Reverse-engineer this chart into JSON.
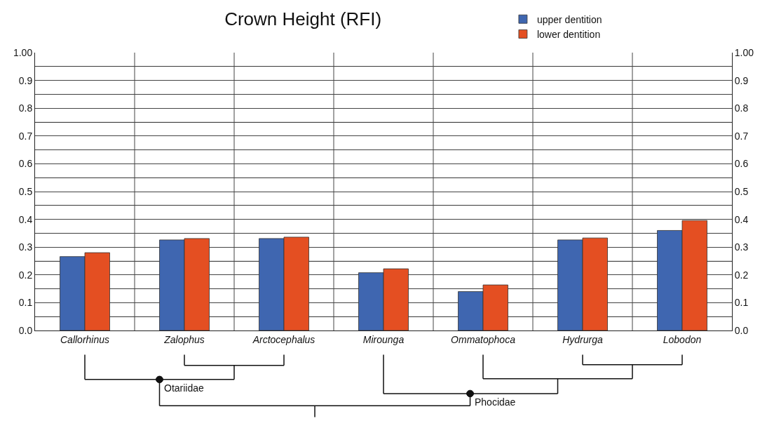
{
  "chart_data": {
    "type": "bar",
    "title": "Crown Height (RFI)",
    "categories": [
      "Callorhinus",
      "Zalophus",
      "Arctocephalus",
      "Mirounga",
      "Ommatophoca",
      "Hydrurga",
      "Lobodon"
    ],
    "series": [
      {
        "name": "upper dentition",
        "color": "#3f66b0",
        "values": [
          0.266,
          0.326,
          0.331,
          0.208,
          0.14,
          0.326,
          0.36
        ]
      },
      {
        "name": "lower dentition",
        "color": "#e44f22",
        "values": [
          0.28,
          0.331,
          0.336,
          0.222,
          0.164,
          0.333,
          0.396
        ]
      }
    ],
    "ylim": [
      0,
      1
    ],
    "yticks": [
      {
        "value": 0,
        "label": "0.0"
      },
      {
        "value": 0.05,
        "label": null
      },
      0.1,
      {
        "value": 0.15,
        "label": null
      },
      0.2,
      {
        "value": 0.25,
        "label": null
      },
      0.3,
      {
        "value": 0.35,
        "label": null
      },
      0.4,
      {
        "value": 0.45,
        "label": null
      },
      0.5,
      {
        "value": 0.55,
        "label": null
      },
      0.6,
      {
        "value": 0.65,
        "label": null
      },
      0.7,
      {
        "value": 0.75,
        "label": null
      },
      0.8,
      {
        "value": 0.85,
        "label": null
      },
      0.9,
      {
        "value": 0.95,
        "label": null
      },
      {
        "value": 1,
        "label": "1.00"
      }
    ],
    "y2lim": [
      0,
      1
    ],
    "y2ticks": [
      {
        "value": 0,
        "label": "0.0"
      },
      0.1,
      0.2,
      0.3,
      0.4,
      0.5,
      0.6,
      0.7,
      0.8,
      0.9,
      {
        "value": 1,
        "label": "1.00"
      }
    ],
    "annotations": [
      "Otariidae",
      "Phocidae"
    ],
    "grid": true,
    "legend": "top right"
  }
}
